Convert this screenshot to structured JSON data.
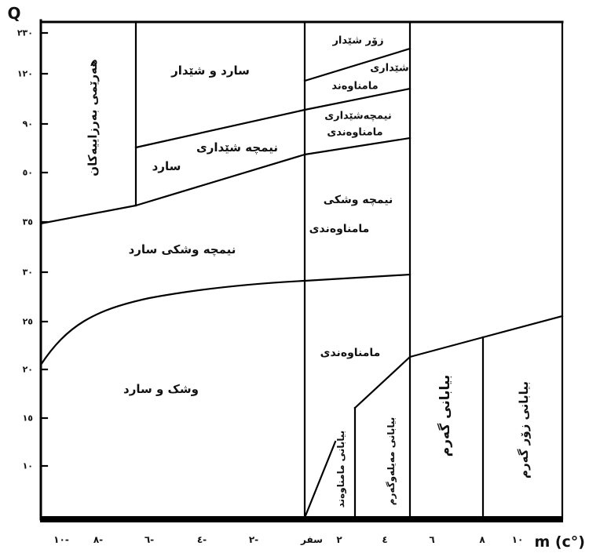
{
  "figure": {
    "y_axis_label": "Q",
    "x_axis_label": "m (c°)",
    "y_ticks": [
      "٢٣٠",
      "١٢٠",
      "٩٠",
      "٥٠",
      "٣٥",
      "٣٠",
      "٢٥",
      "٢٠",
      "١٥",
      "١٠"
    ],
    "x_ticks": [
      "١٠-",
      "٨-",
      "٦-",
      "٤-",
      "٢-",
      "سفر",
      "٢",
      "٤",
      "٦",
      "٨",
      "١٠"
    ]
  },
  "zones": {
    "highlands": "هەرێمی بەرزاییەکان",
    "cold_humid": "سارد و شێدار",
    "semi_humid_cold_line1": "نیمچە شێداری",
    "semi_humid_cold_line2": "سارد",
    "semi_arid_cold": "نیمچە وشکی سارد",
    "arid_cold": "وشک و سارد",
    "very_humid": "زۆر شێدار",
    "humid_temperate_line1": "شێداری",
    "humid_temperate_line2": "مامناوەند",
    "semi_humid_temperate_line1": "نیمچەشێداری",
    "semi_humid_temperate_line2": "مامناوەندی",
    "semi_arid_temperate_line1": "نیمچە وشکی",
    "semi_arid_temperate_line2": "مامناوەندی",
    "arid_temperate": "مامناوەندی",
    "desert_temperate": "بیابانی مامناوەند",
    "desert_warmish": "بیابانی مەیلەوگەرم",
    "desert_warm": "بیابانی گەرم",
    "desert_very_warm": "بیابانی زۆر گەرم"
  },
  "colors": {
    "line": "#000000",
    "background": "#ffffff"
  }
}
